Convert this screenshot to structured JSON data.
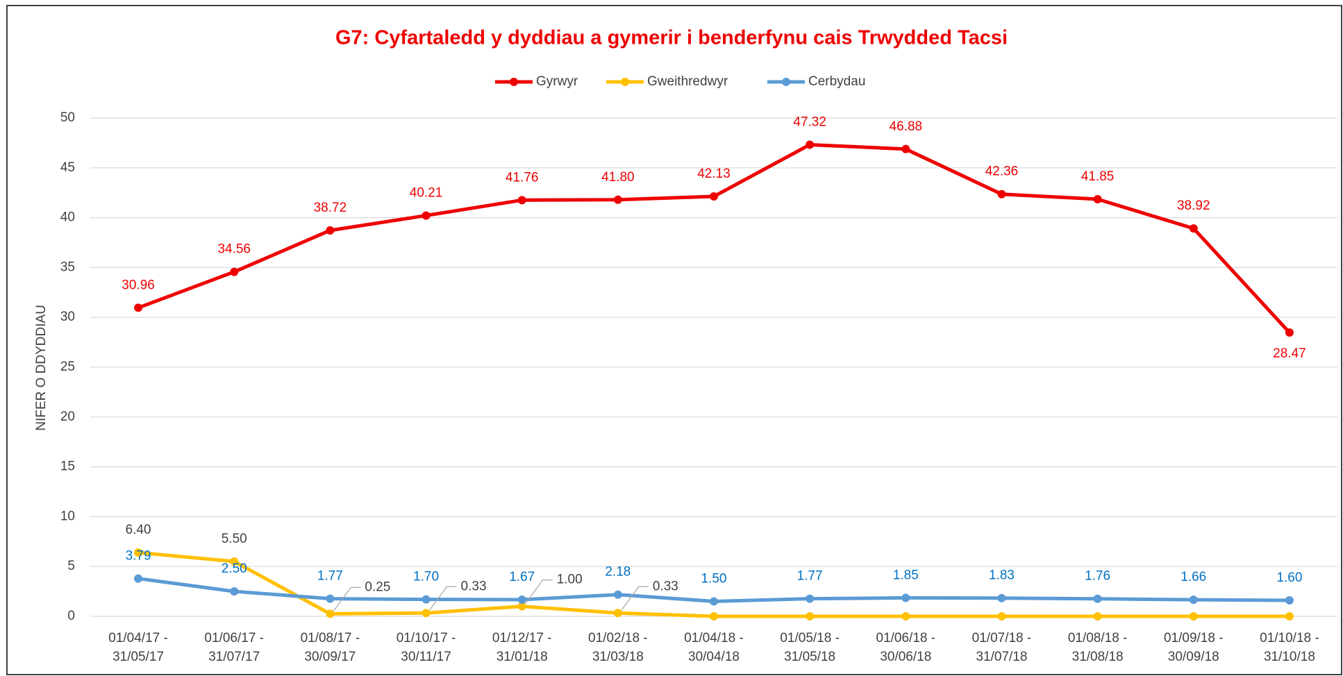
{
  "chart_data": {
    "type": "line",
    "title": "G7: Cyfartaledd y dyddiau a gymerir i benderfynu cais Trwydded Tacsi",
    "y_label": "NIFER O DDYDDIAU",
    "categories": [
      "01/04/17 -\n31/05/17",
      "01/06/17 -\n31/07/17",
      "01/08/17 -\n30/09/17",
      "01/10/17 -\n30/11/17",
      "01/12/17 -\n31/01/18",
      "01/02/18 -\n31/03/18",
      "01/04/18 -\n30/04/18",
      "01/05/18 -\n31/05/18",
      "01/06/18 -\n30/06/18",
      "01/07/18 -\n31/07/18",
      "01/08/18 -\n31/08/18",
      "01/09/18 -\n30/09/18",
      "01/10/18 -\n31/10/18"
    ],
    "series": [
      {
        "name": "Gyrwyr",
        "color": "#ee0000",
        "label_color": "#ee0000",
        "values": [
          30.96,
          34.56,
          38.72,
          40.21,
          41.76,
          41.8,
          42.13,
          47.32,
          46.88,
          42.36,
          41.85,
          38.92,
          28.47
        ],
        "value_labels": [
          "30.96",
          "34.56",
          "38.72",
          "40.21",
          "41.76",
          "41.80",
          "42.13",
          "47.32",
          "46.88",
          "42.36",
          "41.85",
          "38.92",
          "28.47"
        ]
      },
      {
        "name": "Gweithredwyr",
        "color": "#ffc000",
        "label_color": "#404040",
        "values": [
          6.4,
          5.5,
          0.25,
          0.33,
          1.0,
          0.33,
          0,
          0,
          0,
          0,
          0,
          0,
          0
        ],
        "value_labels": [
          "6.40",
          "5.50",
          "0.25",
          "0.33",
          "1.00",
          "0.33",
          null,
          null,
          null,
          null,
          null,
          null,
          null
        ]
      },
      {
        "name": "Cerbydau",
        "color": "#5b9bd5",
        "label_color": "#0070c0",
        "values": [
          3.79,
          2.5,
          1.77,
          1.7,
          1.67,
          2.18,
          1.5,
          1.77,
          1.85,
          1.83,
          1.76,
          1.66,
          1.6
        ],
        "value_labels": [
          "3.79",
          "2.50",
          "1.77",
          "1.70",
          "1.67",
          "2.18",
          "1.50",
          "1.77",
          "1.85",
          "1.83",
          "1.76",
          "1.66",
          "1.60"
        ]
      }
    ],
    "ylim": [
      0,
      50
    ],
    "yticks": [
      0,
      5,
      10,
      15,
      20,
      25,
      30,
      35,
      40,
      45,
      50
    ],
    "grid": true,
    "legend": "top"
  }
}
